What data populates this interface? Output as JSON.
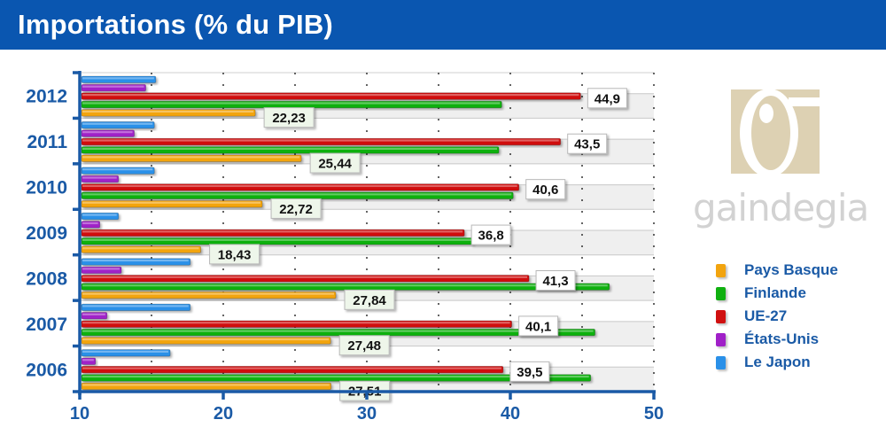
{
  "header": {
    "title": "Importations (% du PIB)"
  },
  "colors": {
    "title_bg": "#0a56b0",
    "axis": "#1a5aa6",
    "Pays Basque": "#f2a40f",
    "Finlande": "#10b010",
    "UE-27": "#d01010",
    "États-Unis": "#a020c8",
    "Le Japon": "#2a90e8"
  },
  "logo": {
    "text": "gaindegia"
  },
  "chart_data": {
    "type": "bar",
    "orientation": "horizontal",
    "title": "Importations (% du PIB)",
    "xlabel": "",
    "ylabel": "",
    "xlim": [
      10,
      50
    ],
    "x_ticks": [
      "10",
      "20",
      "30",
      "40",
      "50"
    ],
    "x_tick_values": [
      10,
      20,
      30,
      40,
      50
    ],
    "grid": "vertical dotted",
    "legend_position": "right",
    "categories": [
      "2012",
      "2011",
      "2010",
      "2009",
      "2008",
      "2007",
      "2006"
    ],
    "series": [
      {
        "name": "Le Japon",
        "values": [
          15.3,
          15.2,
          15.2,
          12.7,
          17.7,
          17.7,
          16.3
        ]
      },
      {
        "name": "États-Unis",
        "values": [
          14.6,
          13.8,
          12.7,
          11.4,
          12.9,
          11.9,
          11.1
        ]
      },
      {
        "name": "UE-27",
        "values": [
          44.9,
          43.5,
          40.6,
          36.8,
          41.3,
          40.1,
          39.5
        ],
        "labels": [
          "44,9",
          "43,5",
          "40,6",
          "36,8",
          "41,3",
          "40,1",
          "39,5"
        ]
      },
      {
        "name": "Finlande",
        "values": [
          39.4,
          39.2,
          40.2,
          37.4,
          46.9,
          45.9,
          45.6
        ]
      },
      {
        "name": "Pays Basque",
        "values": [
          22.23,
          25.44,
          22.72,
          18.43,
          27.84,
          27.48,
          27.51
        ],
        "labels": [
          "22,23",
          "25,44",
          "22,72",
          "18,43",
          "27,84",
          "27,48",
          "27,51"
        ]
      }
    ],
    "legend": [
      "Pays Basque",
      "Finlande",
      "UE-27",
      "États-Unis",
      "Le Japon"
    ]
  }
}
